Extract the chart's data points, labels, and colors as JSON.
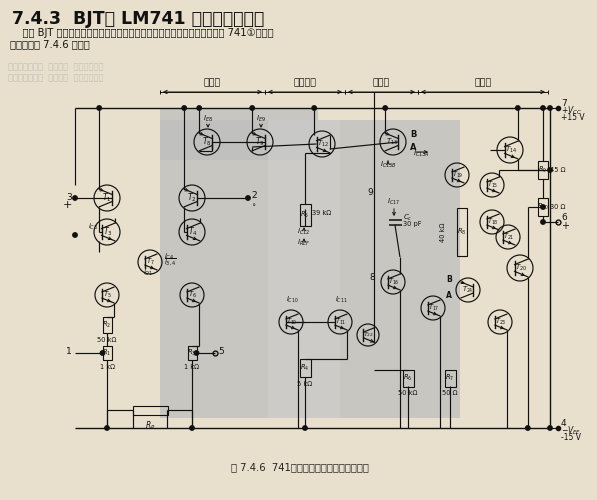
{
  "title": "7.4.3  BJT型 LM741 集成运算放大器",
  "subtitle1": "    作为 BJT 型运算放大器的典型例子，本节介绍一种通用型集成运算放大器 741①，其原",
  "subtitle2": "理电路如图 7.4.6 所示。",
  "caption": "图 7.4.6  741型集成运算放大器的原理电路",
  "sec_labels": [
    "输入级",
    "偏置电路",
    "中间级",
    "输出级"
  ],
  "paper_color": "#e8e0cc",
  "gray_color": "#b0b0b0",
  "line_color": "#111111",
  "vcc_text": "+15 V",
  "vee_text": "-15 V"
}
